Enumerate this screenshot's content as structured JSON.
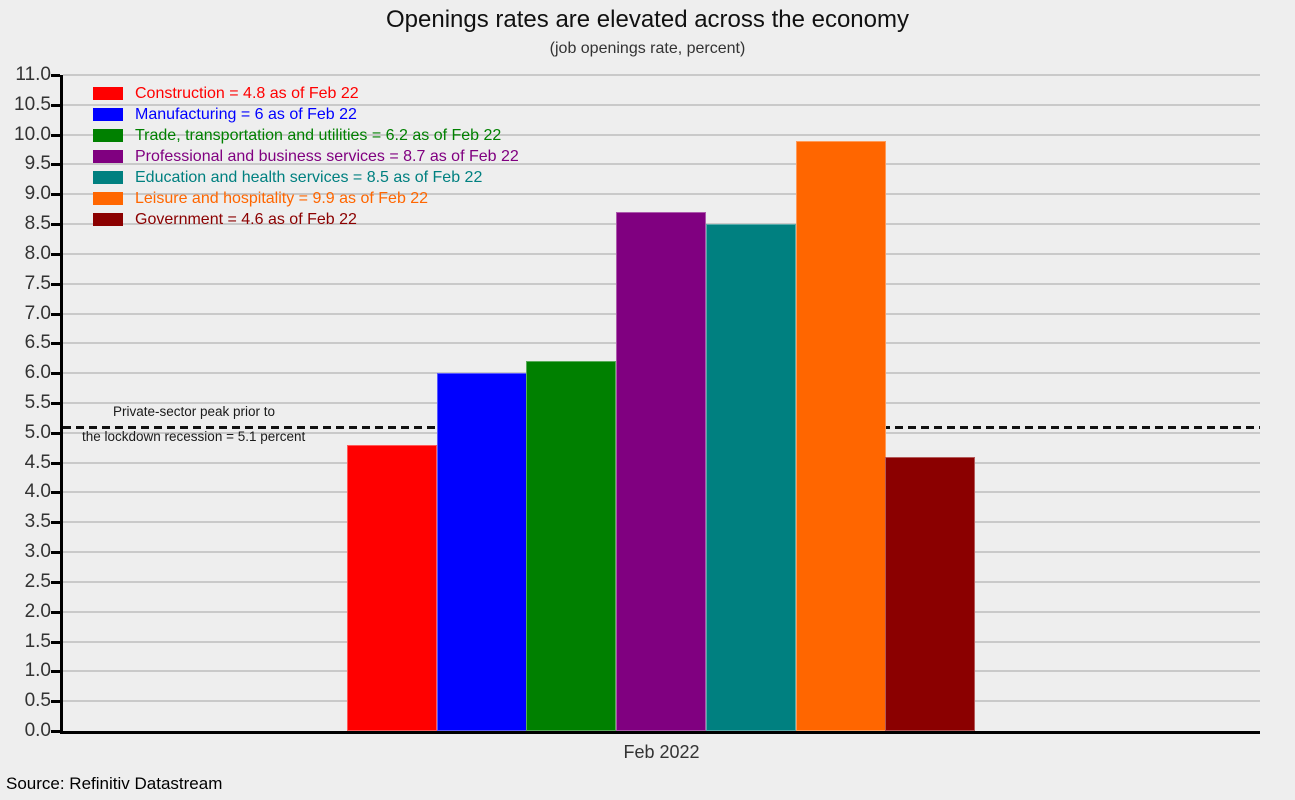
{
  "header": {
    "title": "Openings rates are elevated across the economy",
    "subtitle": "(job openings rate, percent)"
  },
  "footer": {
    "source": "Source: Refinitiv Datastream"
  },
  "chart_data": {
    "type": "bar",
    "title": "Openings rates are elevated across the economy",
    "subtitle": "(job openings rate, percent)",
    "categories": [
      "Feb 2022"
    ],
    "xlabel": "Feb 2022",
    "ylabel": "",
    "ylim": [
      0,
      11
    ],
    "y_tick_step": 0.5,
    "y_ticks": [
      "11.0",
      "10.5",
      "10.0",
      "9.5",
      "9.0",
      "8.5",
      "8.0",
      "7.5",
      "7.0",
      "6.5",
      "6.0",
      "5.5",
      "5.0",
      "4.5",
      "4.0",
      "3.5",
      "3.0",
      "2.5",
      "2.0",
      "1.5",
      "1.0",
      "0.5",
      "0.0"
    ],
    "grid": true,
    "legend_position": "top-left",
    "series": [
      {
        "name": "Construction",
        "value": 4.8,
        "color": "#ff0000",
        "legend_label": "Construction = 4.8 as of Feb 22"
      },
      {
        "name": "Manufacturing",
        "value": 6,
        "color": "#0000ff",
        "legend_label": "Manufacturing = 6 as of Feb 22"
      },
      {
        "name": "Trade, transportation and utilities",
        "value": 6.2,
        "color": "#008000",
        "legend_label": "Trade, transportation and utilities = 6.2 as of Feb 22"
      },
      {
        "name": "Professional and business services",
        "value": 8.7,
        "color": "#800080",
        "legend_label": "Professional and business services = 8.7 as of Feb 22"
      },
      {
        "name": "Education and health services",
        "value": 8.5,
        "color": "#008080",
        "legend_label": "Education and health services = 8.5 as of Feb 22"
      },
      {
        "name": "Leisure and hospitality",
        "value": 9.9,
        "color": "#ff6600",
        "legend_label": "Leisure and hospitality = 9.9 as of Feb 22"
      },
      {
        "name": "Government",
        "value": 4.6,
        "color": "#8b0000",
        "legend_label": "Government = 4.6 as of Feb 22"
      }
    ],
    "reference_line": {
      "value": 5.1,
      "style": "dashed",
      "color": "#111111",
      "label_line1": "Private-sector peak prior to",
      "label_line2": "the lockdown recession = 5.1 percent"
    }
  }
}
